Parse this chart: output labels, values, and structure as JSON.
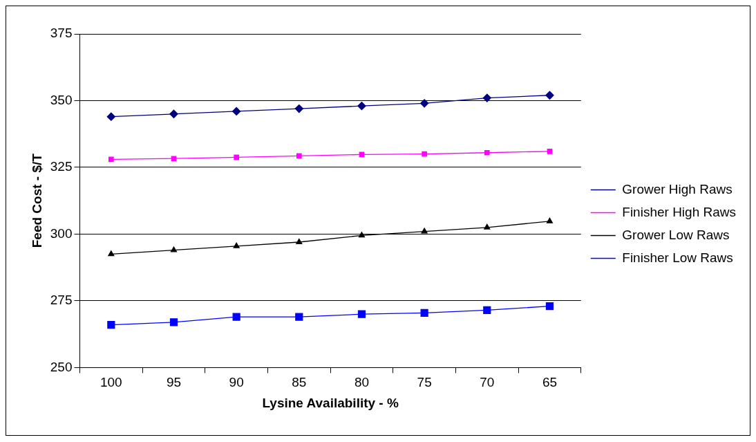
{
  "chart_data": {
    "type": "line",
    "xlabel": "Lysine Availability - %",
    "ylabel": "Feed Cost - $/T",
    "categories": [
      "100",
      "95",
      "90",
      "85",
      "80",
      "75",
      "70",
      "65"
    ],
    "ylim": [
      250,
      375
    ],
    "yticks": [
      250,
      275,
      300,
      325,
      350,
      375
    ],
    "grid": "y",
    "legend": "right",
    "line_style": "solid",
    "series": [
      {
        "name": "Grower High Raws",
        "color": "#000080",
        "marker": "diamond",
        "values": [
          344,
          345,
          346,
          347,
          348,
          349,
          351,
          352
        ]
      },
      {
        "name": "Finisher High Raws",
        "color": "#ff00ff",
        "marker": "square",
        "values": [
          328,
          328.3,
          328.8,
          329.3,
          329.8,
          330,
          330.5,
          331
        ]
      },
      {
        "name": "Grower Low Raws",
        "color": "#000000",
        "marker": "triangle",
        "values": [
          292.5,
          294,
          295.5,
          297,
          299.5,
          301,
          302.5,
          304.8
        ]
      },
      {
        "name": "Finisher Low Raws",
        "color": "#0000ff",
        "marker": "square",
        "values": [
          266,
          267,
          269,
          269,
          270,
          270.5,
          271.5,
          273
        ]
      }
    ]
  }
}
